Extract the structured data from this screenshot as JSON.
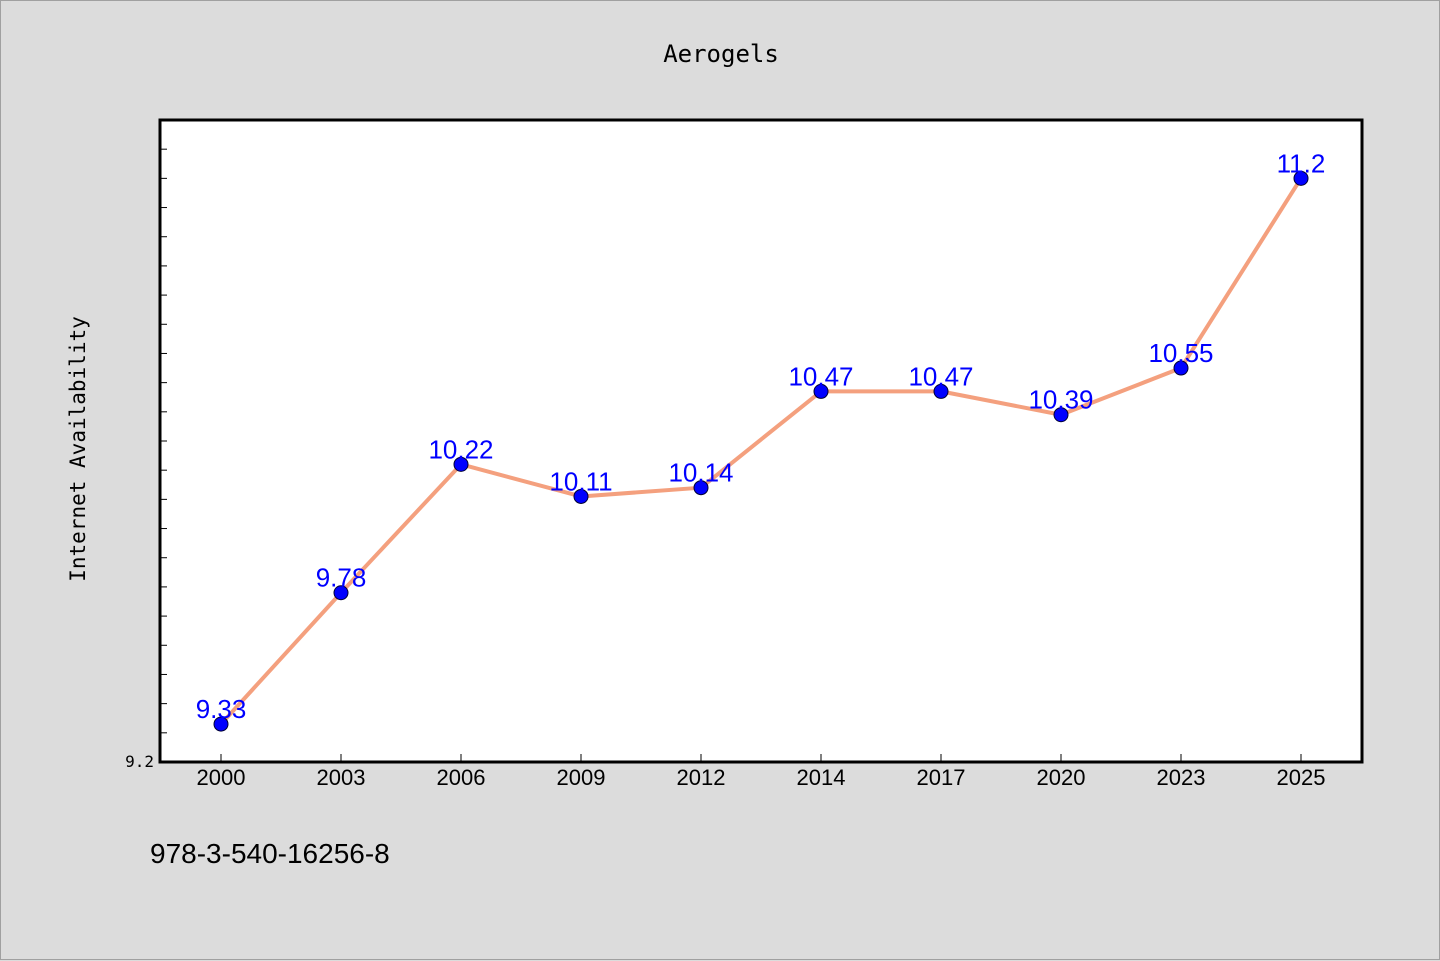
{
  "chart_data": {
    "type": "line",
    "title": "Aerogels",
    "xlabel": "",
    "ylabel": "Internet Availability",
    "categories": [
      "2000",
      "2003",
      "2006",
      "2009",
      "2012",
      "2014",
      "2017",
      "2020",
      "2023",
      "2025"
    ],
    "series": [
      {
        "values": [
          9.33,
          9.78,
          10.22,
          10.11,
          10.14,
          10.47,
          10.47,
          10.39,
          10.55,
          11.2
        ]
      }
    ],
    "ylim": [
      9.2,
      11.4
    ],
    "yticks_labeled": [
      "9.2"
    ],
    "data_labels": [
      "9.33",
      "9.78",
      "10.22",
      "10.11",
      "10.14",
      "10.47",
      "10.47",
      "10.39",
      "10.55",
      "11.2"
    ],
    "grid": false,
    "legend": "none"
  },
  "footer": {
    "isbn": "978-3-540-16256-8"
  },
  "colors": {
    "background": "#dcdcdc",
    "plot_background": "#ffffff",
    "line": "#f4a07e",
    "marker": "#0000ff",
    "label": "#0000ff"
  }
}
